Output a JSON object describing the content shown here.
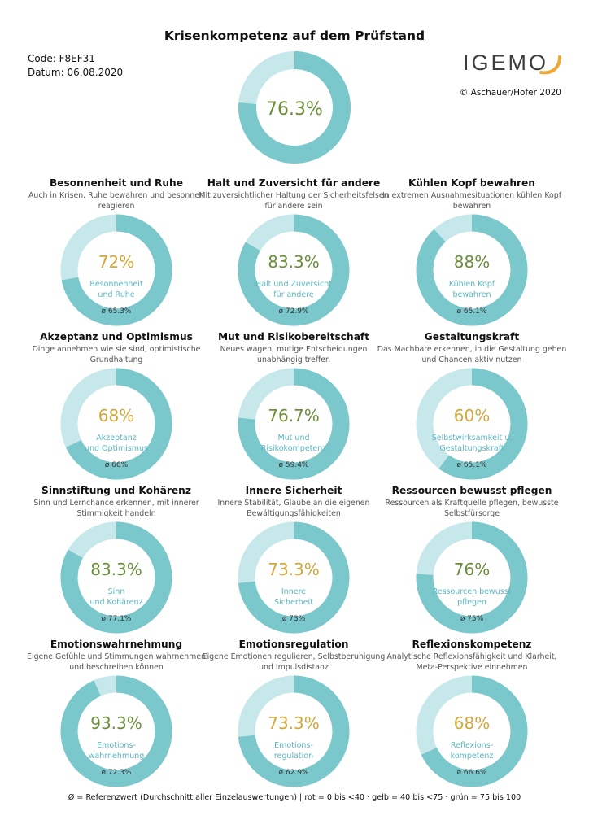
{
  "title": "Krisenkompetenz auf dem Prüfstand",
  "code": "Code: F8EF31",
  "date": "Datum: 06.08.2020",
  "logo_text": "IGEMO",
  "copyright": "© Aschauer/Hofer 2020",
  "colors": {
    "ring": "#7ac7cc",
    "ring_bg": "#c6e8eb",
    "green": "#6b8e3a",
    "yellow": "#d3a63a",
    "label": "#5bb7c1",
    "logo_arc": "#f0a830"
  },
  "chart_data": {
    "type": "donut",
    "main": {
      "value": 76.3,
      "label": "76.3%",
      "color": "green"
    },
    "charts": [
      {
        "title": "Besonnenheit und Ruhe",
        "desc": [
          "Auch in Krisen, Ruhe bewahren und besonnen",
          "reagieren"
        ],
        "value": 72,
        "label": "72%",
        "color": "yellow",
        "inner": [
          "Besonnenheit",
          "und Ruhe"
        ],
        "ref": "ø 65.3%"
      },
      {
        "title": "Halt und Zuversicht für andere",
        "desc": [
          "Mit zuversichtlicher Haltung der Sicherheitsfelsen",
          "für andere sein"
        ],
        "value": 83.3,
        "label": "83.3%",
        "color": "green",
        "inner": [
          "Halt und Zuversicht",
          "für andere"
        ],
        "ref": "ø 72.9%"
      },
      {
        "title": "Kühlen Kopf bewahren",
        "desc": [
          "In extremen Ausnahmesituationen kühlen Kopf",
          "bewahren"
        ],
        "value": 88,
        "label": "88%",
        "color": "green",
        "inner": [
          "Kühlen Kopf",
          "bewahren"
        ],
        "ref": "ø 65.1%"
      },
      {
        "title": "Akzeptanz und Optimismus",
        "desc": [
          "Dinge annehmen wie sie sind, optimistische",
          "Grundhaltung"
        ],
        "value": 68,
        "label": "68%",
        "color": "yellow",
        "inner": [
          "Akzeptanz",
          "und Optimismus"
        ],
        "ref": "ø 66%"
      },
      {
        "title": "Mut und Risikobereitschaft",
        "desc": [
          "Neues wagen, mutige Entscheidungen",
          "unabhängig treffen"
        ],
        "value": 76.7,
        "label": "76.7%",
        "color": "green",
        "inner": [
          "Mut und",
          "Risikokompetenz"
        ],
        "ref": "ø 59.4%"
      },
      {
        "title": "Gestaltungskraft",
        "desc": [
          "Das Machbare erkennen, in die Gestaltung gehen",
          "und Chancen aktiv nutzen"
        ],
        "value": 60,
        "label": "60%",
        "color": "yellow",
        "inner": [
          "Selbstwirksamkeit u.",
          "Gestaltungskraft"
        ],
        "ref": "ø 65.1%"
      },
      {
        "title": "Sinnstiftung und Kohärenz",
        "desc": [
          "Sinn und Lernchance erkennen, mit innerer",
          "Stimmigkeit handeln"
        ],
        "value": 83.3,
        "label": "83.3%",
        "color": "green",
        "inner": [
          "Sinn",
          "und Kohärenz"
        ],
        "ref": "ø 77.1%"
      },
      {
        "title": "Innere Sicherheit",
        "desc": [
          "Innere Stabilität, Glaube an die eigenen",
          "Bewältigungsfähigkeiten"
        ],
        "value": 73.3,
        "label": "73.3%",
        "color": "yellow",
        "inner": [
          "Innere",
          "Sicherheit"
        ],
        "ref": "ø 73%"
      },
      {
        "title": "Ressourcen bewusst pflegen",
        "desc": [
          "Ressourcen als Kraftquelle pflegen, bewusste",
          "Selbstfürsorge"
        ],
        "value": 76,
        "label": "76%",
        "color": "green",
        "inner": [
          "Ressourcen bewusst",
          "pflegen"
        ],
        "ref": "ø 75%"
      },
      {
        "title": "Emotionswahrnehmung",
        "desc": [
          "Eigene Gefühle und Stimmungen wahrnehmen",
          "und beschreiben können"
        ],
        "value": 93.3,
        "label": "93.3%",
        "color": "green",
        "inner": [
          "Emotions-",
          "wahrnehmung"
        ],
        "ref": "ø 72.3%"
      },
      {
        "title": "Emotionsregulation",
        "desc": [
          "Eigene Emotionen regulieren, Selbstberuhigung",
          "und Impulsdistanz"
        ],
        "value": 73.3,
        "label": "73.3%",
        "color": "yellow",
        "inner": [
          "Emotions-",
          "regulation"
        ],
        "ref": "ø 62.9%"
      },
      {
        "title": "Reflexionskompetenz",
        "desc": [
          "Analytische Reflexionsfähigkeit und Klarheit,",
          "Meta-Perspektive einnehmen"
        ],
        "value": 68,
        "label": "68%",
        "color": "yellow",
        "inner": [
          "Reflexions-",
          "kompetenz"
        ],
        "ref": "ø 66.6%"
      }
    ]
  },
  "footer": "Ø = Referenzwert (Durchschnitt aller Einzelauswertungen) | rot = 0 bis <40 · gelb = 40 bis <75 · grün = 75 bis 100"
}
